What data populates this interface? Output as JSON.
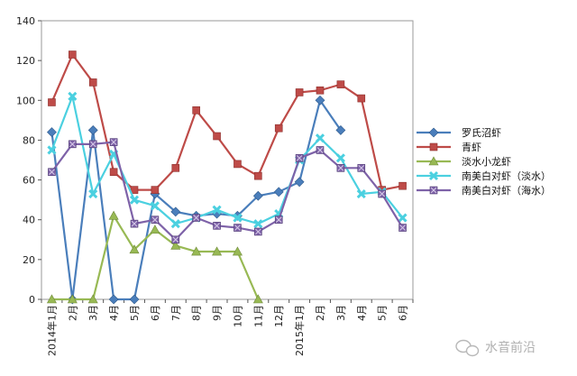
{
  "chart_data": {
    "type": "line",
    "title": "",
    "xlabel": "",
    "ylabel": "",
    "ylim": [
      0,
      140
    ],
    "yticks": [
      0,
      20,
      40,
      60,
      80,
      100,
      120,
      140
    ],
    "grid": false,
    "legend_position": "right",
    "categories": [
      "2014年1月",
      "2月",
      "3月",
      "4月",
      "5月",
      "6月",
      "7月",
      "8月",
      "9月",
      "10月",
      "11月",
      "12月",
      "2015年1月",
      "2月",
      "3月",
      "4月",
      "5月",
      "6月"
    ],
    "series": [
      {
        "name": "罗氏沼虾",
        "color": "#4a7ebb",
        "marker": "diamond",
        "values": [
          84,
          0,
          85,
          0,
          0,
          53,
          44,
          42,
          43,
          42,
          52,
          54,
          59,
          100,
          85,
          null,
          null,
          null
        ]
      },
      {
        "name": "青虾",
        "color": "#be4b48",
        "marker": "square",
        "values": [
          99,
          123,
          109,
          64,
          55,
          55,
          66,
          95,
          82,
          68,
          62,
          86,
          104,
          105,
          108,
          101,
          55,
          57
        ]
      },
      {
        "name": "淡水小龙虾",
        "color": "#98b954",
        "marker": "triangle",
        "values": [
          0,
          0,
          0,
          42,
          25,
          35,
          27,
          24,
          24,
          24,
          0,
          null,
          null,
          null,
          null,
          null,
          null,
          null
        ]
      },
      {
        "name": "南美白对虾（淡水）",
        "color": "#4bd0e0",
        "marker": "x",
        "values": [
          75,
          102,
          53,
          73,
          50,
          47,
          38,
          41,
          45,
          41,
          38,
          43,
          70,
          81,
          71,
          53,
          54,
          41
        ]
      },
      {
        "name": "南美白对虾（海水）",
        "color": "#7e62a8",
        "marker": "xbox",
        "values": [
          64,
          78,
          78,
          79,
          38,
          40,
          30,
          41,
          37,
          36,
          34,
          40,
          71,
          75,
          66,
          66,
          53,
          36
        ]
      }
    ]
  },
  "watermark": {
    "text": "水音前沿",
    "icon": "wechat-icon"
  }
}
